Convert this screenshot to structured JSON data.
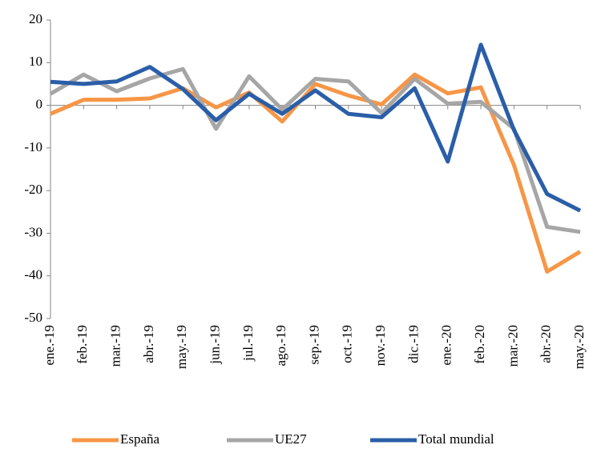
{
  "chart_data": {
    "type": "line",
    "categories": [
      "ene.-19",
      "feb.-19",
      "mar.-19",
      "abr.-19",
      "may.-19",
      "jun.-19",
      "jul.-19",
      "ago.-19",
      "sep.-19",
      "oct.-19",
      "nov.-19",
      "dic.-19",
      "ene.-20",
      "feb.-20",
      "mar.-20",
      "abr.-20",
      "may.-20"
    ],
    "series": [
      {
        "name": "España",
        "color": "#f79646",
        "values": [
          -2,
          1.3,
          1.3,
          1.6,
          4,
          -0.5,
          3,
          -3.8,
          5,
          2.3,
          0.2,
          7.2,
          2.8,
          4.2,
          -14,
          -39,
          -34.3
        ]
      },
      {
        "name": "UE27",
        "color": "#a6a6a6",
        "values": [
          2.7,
          7.2,
          3.3,
          6.3,
          8.5,
          -5.5,
          6.8,
          -1,
          6.2,
          5.6,
          -1.8,
          6.2,
          0.4,
          0.8,
          -5.5,
          -28.5,
          -29.7
        ]
      },
      {
        "name": "Total mundial",
        "color": "#2a5ea8",
        "values": [
          5.5,
          5,
          5.6,
          9,
          3.8,
          -3.5,
          2.7,
          -2,
          3.5,
          -2,
          -2.8,
          4,
          -13.2,
          14.2,
          -5.8,
          -20.8,
          -24.7
        ]
      }
    ],
    "ylim": [
      -50,
      20
    ],
    "yticks": [
      -50,
      -40,
      -30,
      -20,
      -10,
      0,
      10,
      20
    ],
    "legend": "bottom"
  }
}
